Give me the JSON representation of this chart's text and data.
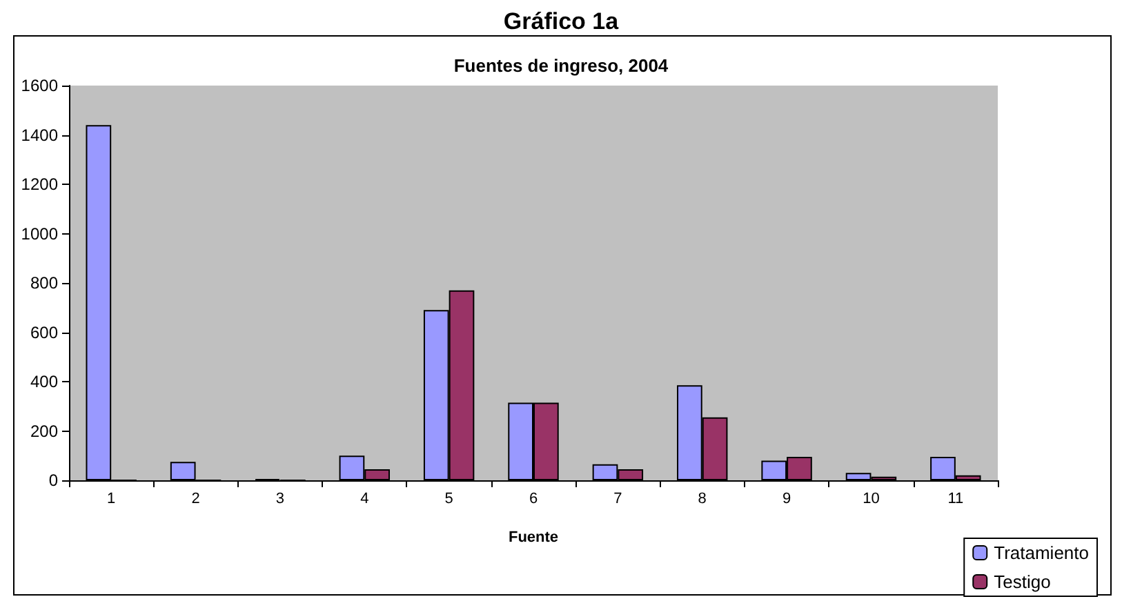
{
  "chart_data": {
    "type": "bar",
    "title": "Gráfico 1a",
    "subtitle": "Fuentes de ingreso, 2004",
    "xlabel": "Fuente",
    "categories": [
      "1",
      "2",
      "3",
      "4",
      "5",
      "6",
      "7",
      "8",
      "9",
      "10",
      "11"
    ],
    "series": [
      {
        "name": "Tratamiento",
        "color": "#9999ff",
        "values": [
          1440,
          75,
          5,
          100,
          690,
          315,
          65,
          385,
          80,
          30,
          95
        ]
      },
      {
        "name": "Testigo",
        "color": "#993366",
        "values": [
          0,
          0,
          0,
          45,
          770,
          315,
          45,
          255,
          95,
          15,
          20
        ]
      }
    ],
    "ylim": [
      0,
      1600
    ],
    "yticks": [
      0,
      200,
      400,
      600,
      800,
      1000,
      1200,
      1400,
      1600
    ],
    "grid": false,
    "legend": "bottom right"
  }
}
